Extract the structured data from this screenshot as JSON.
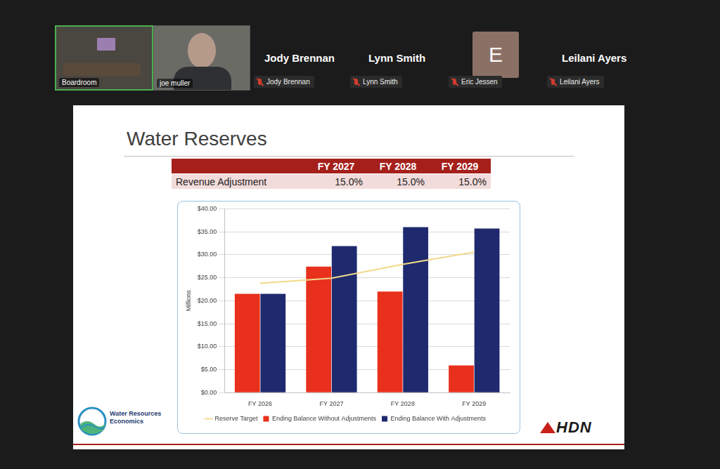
{
  "meeting": {
    "tiles": [
      {
        "label": "Boardroom"
      },
      {
        "label": "joe muller"
      }
    ],
    "participants": [
      {
        "name": "Jody Brennan",
        "label": "Jody Brennan"
      },
      {
        "name": "Lynn Smith",
        "label": "Lynn Smith"
      },
      {
        "avatar": "E",
        "label": "Eric Jessen"
      },
      {
        "name": "Leilani Ayers",
        "label": "Leilani Ayers"
      }
    ]
  },
  "slide": {
    "title": "Water Reserves",
    "table": {
      "header": [
        "FY 2027",
        "FY 2028",
        "FY 2029"
      ],
      "rows": [
        [
          "Revenue Adjustment",
          "15.0%",
          "15.0%",
          "15.0%"
        ]
      ]
    },
    "logos": {
      "left": [
        "Water Resources",
        "Economics"
      ],
      "right": "HDN"
    }
  },
  "chart_data": {
    "type": "bar",
    "y_label": "Millions",
    "categories": [
      "FY 2026",
      "FY 2027",
      "FY 2028",
      "FY 2029"
    ],
    "series": [
      {
        "name": "Ending Balance Without Adjustments",
        "type": "bar",
        "color": "#e8301c",
        "values": [
          21.5,
          27.4,
          22.0,
          5.9
        ]
      },
      {
        "name": "Ending Balance With Adjustments",
        "type": "bar",
        "color": "#1f2a6e",
        "values": [
          21.5,
          31.9,
          36.0,
          35.7
        ]
      },
      {
        "name": "Reserve Target",
        "type": "line",
        "color": "#f3d98a",
        "values": [
          23.8,
          24.9,
          27.9,
          30.6
        ]
      }
    ],
    "ylim": [
      0,
      40
    ],
    "yticks": [
      {
        "value": 0,
        "label": "$0.00"
      },
      {
        "value": 5,
        "label": "$5.00"
      },
      {
        "value": 10,
        "label": "$10.00"
      },
      {
        "value": 15,
        "label": "$15.00"
      },
      {
        "value": 20,
        "label": "$20.00"
      },
      {
        "value": 25,
        "label": "$25.00"
      },
      {
        "value": 30,
        "label": "$30.00"
      },
      {
        "value": 35,
        "label": "$35.00"
      },
      {
        "value": 40,
        "label": "$40.00"
      }
    ],
    "grid": true,
    "legend": "bottom"
  }
}
